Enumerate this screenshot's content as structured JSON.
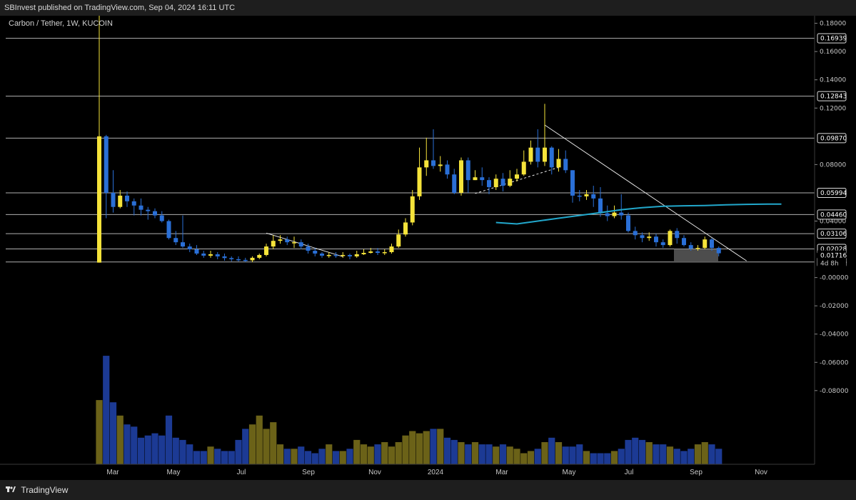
{
  "header": {
    "publisher": "SBInvest published on TradingView.com, Sep 04, 2024 16:11 UTC"
  },
  "footer": {
    "brand": "TradingView",
    "logo_icon": "tradingview-logo-icon"
  },
  "colors": {
    "bull": "#f5e33a",
    "bear": "#2a6fd6",
    "vol_bull": "#6b6218",
    "vol_bear": "#1c3a94",
    "ma": "#22a8cc",
    "level": "#cfcfcf",
    "trend": "#e8e8e8",
    "box": "#5a5a5a"
  },
  "chart_data": {
    "type": "candlestick",
    "title": "Carbon / Tether, 1W, KUCOIN",
    "xlabels": [
      "Mar",
      "May",
      "Jul",
      "Sep",
      "Nov",
      "2024",
      "Mar",
      "May",
      "Jul",
      "Sep",
      "Nov"
    ],
    "yticks": [
      "0.18000",
      "0.16000",
      "0.14000",
      "0.12000",
      "0.08000",
      "0.04000",
      "-0.00000",
      "-0.02000",
      "-0.04000",
      "-0.06000",
      "-0.08000"
    ],
    "ytick_values": [
      0.18,
      0.16,
      0.14,
      0.12,
      0.08,
      0.04,
      0.0,
      -0.02,
      -0.04,
      -0.06,
      -0.08
    ],
    "levels": [
      {
        "label": "0.16939",
        "value": 0.16939
      },
      {
        "label": "0.12843",
        "value": 0.12843
      },
      {
        "label": "0.09870",
        "value": 0.0987
      },
      {
        "label": "0.05994",
        "value": 0.05994
      },
      {
        "label": "0.04460",
        "value": 0.0446
      },
      {
        "label": "0.03106",
        "value": 0.03106
      },
      {
        "label": "0.02028",
        "value": 0.02028
      },
      {
        "label": "0.01106",
        "value": 0.01106
      }
    ],
    "current_price": {
      "label": "0.01716",
      "countdown": "4d 8h",
      "value": 0.01716
    },
    "candles": [
      [
        0.0106,
        0.1,
        0.199,
        0.0106
      ],
      [
        0.1,
        0.06,
        0.101,
        0.042
      ],
      [
        0.06,
        0.05,
        0.076,
        0.046
      ],
      [
        0.05,
        0.058,
        0.062,
        0.049
      ],
      [
        0.058,
        0.054,
        0.061,
        0.05
      ],
      [
        0.054,
        0.051,
        0.056,
        0.044
      ],
      [
        0.051,
        0.048,
        0.056,
        0.044
      ],
      [
        0.048,
        0.047,
        0.05,
        0.041
      ],
      [
        0.047,
        0.044,
        0.049,
        0.042
      ],
      [
        0.044,
        0.04,
        0.047,
        0.039
      ],
      [
        0.04,
        0.028,
        0.041,
        0.027
      ],
      [
        0.028,
        0.025,
        0.033,
        0.023
      ],
      [
        0.025,
        0.022,
        0.044,
        0.021
      ],
      [
        0.022,
        0.02,
        0.024,
        0.018
      ],
      [
        0.02,
        0.017,
        0.023,
        0.016
      ],
      [
        0.017,
        0.0155,
        0.019,
        0.014
      ],
      [
        0.0155,
        0.0165,
        0.019,
        0.014
      ],
      [
        0.0165,
        0.015,
        0.018,
        0.013
      ],
      [
        0.015,
        0.0138,
        0.017,
        0.012
      ],
      [
        0.0138,
        0.013,
        0.015,
        0.0115
      ],
      [
        0.013,
        0.0125,
        0.015,
        0.0115
      ],
      [
        0.0125,
        0.0122,
        0.014,
        0.011
      ],
      [
        0.0122,
        0.014,
        0.015,
        0.011
      ],
      [
        0.014,
        0.016,
        0.017,
        0.013
      ],
      [
        0.016,
        0.022,
        0.024,
        0.015
      ],
      [
        0.022,
        0.026,
        0.03,
        0.02
      ],
      [
        0.026,
        0.027,
        0.03,
        0.024
      ],
      [
        0.027,
        0.025,
        0.029,
        0.023
      ],
      [
        0.025,
        0.025,
        0.029,
        0.021
      ],
      [
        0.025,
        0.022,
        0.027,
        0.02
      ],
      [
        0.022,
        0.019,
        0.024,
        0.017
      ],
      [
        0.019,
        0.017,
        0.021,
        0.015
      ],
      [
        0.017,
        0.0155,
        0.018,
        0.014
      ],
      [
        0.0155,
        0.016,
        0.018,
        0.014
      ],
      [
        0.016,
        0.0155,
        0.018,
        0.014
      ],
      [
        0.0155,
        0.016,
        0.018,
        0.014
      ],
      [
        0.016,
        0.015,
        0.017,
        0.013
      ],
      [
        0.015,
        0.0165,
        0.019,
        0.014
      ],
      [
        0.0165,
        0.0175,
        0.02,
        0.016
      ],
      [
        0.0175,
        0.0185,
        0.021,
        0.017
      ],
      [
        0.0185,
        0.0175,
        0.021,
        0.016
      ],
      [
        0.0175,
        0.018,
        0.02,
        0.016
      ],
      [
        0.018,
        0.022,
        0.024,
        0.017
      ],
      [
        0.022,
        0.0305,
        0.034,
        0.021
      ],
      [
        0.0305,
        0.039,
        0.042,
        0.029
      ],
      [
        0.039,
        0.0575,
        0.062,
        0.037
      ],
      [
        0.0575,
        0.078,
        0.092,
        0.055
      ],
      [
        0.078,
        0.083,
        0.099,
        0.072
      ],
      [
        0.083,
        0.079,
        0.105,
        0.077
      ],
      [
        0.079,
        0.08,
        0.086,
        0.075
      ],
      [
        0.08,
        0.073,
        0.083,
        0.07
      ],
      [
        0.073,
        0.06,
        0.077,
        0.059
      ],
      [
        0.06,
        0.083,
        0.085,
        0.058
      ],
      [
        0.083,
        0.069,
        0.085,
        0.06
      ],
      [
        0.069,
        0.071,
        0.076,
        0.069
      ],
      [
        0.071,
        0.069,
        0.078,
        0.065
      ],
      [
        0.069,
        0.064,
        0.071,
        0.059
      ],
      [
        0.064,
        0.07,
        0.073,
        0.062
      ],
      [
        0.07,
        0.065,
        0.074,
        0.061
      ],
      [
        0.065,
        0.07,
        0.076,
        0.064
      ],
      [
        0.07,
        0.073,
        0.077,
        0.068
      ],
      [
        0.073,
        0.082,
        0.09,
        0.072
      ],
      [
        0.082,
        0.092,
        0.097,
        0.08
      ],
      [
        0.092,
        0.082,
        0.105,
        0.078
      ],
      [
        0.082,
        0.092,
        0.123,
        0.079
      ],
      [
        0.092,
        0.078,
        0.093,
        0.073
      ],
      [
        0.078,
        0.084,
        0.091,
        0.075
      ],
      [
        0.084,
        0.076,
        0.09,
        0.074
      ],
      [
        0.076,
        0.058,
        0.076,
        0.053
      ],
      [
        0.058,
        0.0575,
        0.062,
        0.054
      ],
      [
        0.0575,
        0.059,
        0.062,
        0.055
      ],
      [
        0.059,
        0.056,
        0.065,
        0.05
      ],
      [
        0.056,
        0.0455,
        0.064,
        0.043
      ],
      [
        0.0455,
        0.0435,
        0.051,
        0.04
      ],
      [
        0.0435,
        0.046,
        0.051,
        0.042
      ],
      [
        0.046,
        0.044,
        0.059,
        0.041
      ],
      [
        0.044,
        0.033,
        0.046,
        0.032
      ],
      [
        0.033,
        0.03,
        0.036,
        0.027
      ],
      [
        0.03,
        0.028,
        0.032,
        0.025
      ],
      [
        0.028,
        0.029,
        0.032,
        0.026
      ],
      [
        0.029,
        0.025,
        0.031,
        0.022
      ],
      [
        0.025,
        0.023,
        0.027,
        0.021
      ],
      [
        0.023,
        0.033,
        0.034,
        0.022
      ],
      [
        0.033,
        0.028,
        0.035,
        0.024
      ],
      [
        0.028,
        0.023,
        0.03,
        0.022
      ],
      [
        0.023,
        0.0205,
        0.025,
        0.019
      ],
      [
        0.0205,
        0.021,
        0.023,
        0.019
      ],
      [
        0.021,
        0.027,
        0.029,
        0.02
      ],
      [
        0.027,
        0.021,
        0.028,
        0.019
      ],
      [
        0.021,
        0.0172,
        0.022,
        0.015
      ]
    ],
    "volume": [
      29,
      49,
      28,
      22,
      18,
      17,
      12,
      13,
      14,
      13,
      22,
      12,
      11,
      9,
      6,
      6,
      8,
      7,
      6,
      6,
      11,
      16,
      18,
      22,
      16,
      19,
      9,
      7,
      7,
      8,
      6,
      5,
      7,
      9,
      6,
      6,
      7,
      11,
      9,
      8,
      9,
      10,
      8,
      10,
      13,
      15,
      14,
      15,
      16,
      16,
      12,
      11,
      10,
      9,
      10,
      9,
      9,
      8,
      9,
      8,
      7,
      5,
      6,
      7,
      10,
      12,
      10,
      8,
      8,
      9,
      6,
      5,
      5,
      5,
      6,
      7,
      11,
      12,
      11,
      10,
      9,
      9,
      8,
      7,
      6,
      7,
      9,
      10,
      9,
      7
    ],
    "ma_points": [
      [
        57,
        0.039
      ],
      [
        60,
        0.038
      ],
      [
        63,
        0.04
      ],
      [
        66,
        0.042
      ],
      [
        69,
        0.044
      ],
      [
        72,
        0.046
      ],
      [
        75,
        0.048
      ],
      [
        78,
        0.0495
      ],
      [
        81,
        0.0505
      ],
      [
        84,
        0.0508
      ],
      [
        87,
        0.051
      ],
      [
        90,
        0.0515
      ],
      [
        93,
        0.0518
      ],
      [
        96,
        0.052
      ],
      [
        98,
        0.052
      ]
    ]
  }
}
